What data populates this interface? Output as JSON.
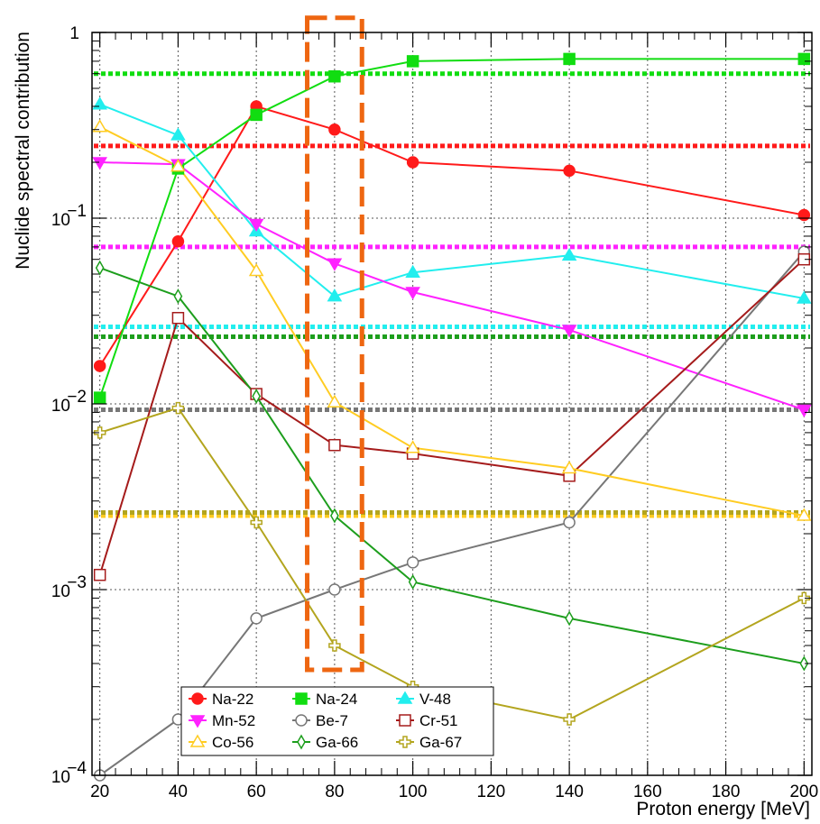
{
  "chart_data": {
    "type": "line",
    "title": "",
    "xlabel": "Proton energy [MeV]",
    "ylabel": "Nuclide spectral contribution",
    "xlim": [
      18,
      202
    ],
    "ylim": [
      0.0001,
      1
    ],
    "yscale": "log",
    "grid": true,
    "x_ticks": [
      20,
      40,
      60,
      80,
      100,
      120,
      140,
      160,
      180,
      200
    ],
    "x_tick_labels": [
      "20",
      "40",
      "60",
      "80",
      "100",
      "120",
      "140",
      "160",
      "180",
      "200"
    ],
    "y_ticks": [
      0.0001,
      0.001,
      0.01,
      0.1,
      1
    ],
    "y_tick_labels": [
      {
        "base": "10",
        "exp": "−4"
      },
      {
        "base": "10",
        "exp": "−3"
      },
      {
        "base": "10",
        "exp": "−2"
      },
      {
        "base": "10",
        "exp": "−1"
      },
      {
        "base": "1",
        "exp": ""
      }
    ],
    "legend_position": "bottom-left",
    "x": [
      20,
      40,
      60,
      80,
      100,
      140,
      200
    ],
    "series": [
      {
        "name": "Na-22",
        "color": "#ff1a1a",
        "marker": "circle-filled",
        "values": [
          0.016,
          0.075,
          0.4,
          0.3,
          0.2,
          0.18,
          0.104
        ],
        "average": 0.245
      },
      {
        "name": "Na-24",
        "color": "#11dd11",
        "marker": "square-filled",
        "values": [
          0.0108,
          0.185,
          0.36,
          0.58,
          0.7,
          0.72,
          0.72
        ],
        "average": 0.6
      },
      {
        "name": "V-48",
        "color": "#22eeee",
        "marker": "triangle-up-filled",
        "values": [
          0.41,
          0.28,
          0.085,
          0.038,
          0.051,
          0.063,
          0.037
        ],
        "average": 0.026
      },
      {
        "name": "Mn-52",
        "color": "#ff22ff",
        "marker": "triangle-down-filled",
        "values": [
          0.2,
          0.195,
          0.093,
          0.057,
          0.04,
          0.025,
          0.0093
        ],
        "average": 0.07
      },
      {
        "name": "Be-7",
        "color": "#777777",
        "marker": "circle-open",
        "values": [
          0.0001,
          0.0002,
          0.0007,
          0.001,
          0.0014,
          0.0023,
          0.066
        ],
        "average": 0.0093
      },
      {
        "name": "Cr-51",
        "color": "#a51b1b",
        "marker": "square-open",
        "values": [
          0.0012,
          0.029,
          0.0113,
          0.006,
          0.0054,
          0.0041,
          0.06
        ],
        "average": 0.0025
      },
      {
        "name": "Co-56",
        "color": "#ffcc22",
        "marker": "triangle-up-open",
        "values": [
          0.31,
          0.19,
          0.052,
          0.0102,
          0.0058,
          0.0045,
          0.0025
        ],
        "average": 0.0025
      },
      {
        "name": "Ga-66",
        "color": "#1d9e1d",
        "marker": "diamond-open",
        "values": [
          0.054,
          0.038,
          0.011,
          0.0025,
          0.0011,
          0.0007,
          0.0004
        ],
        "average": 0.023
      },
      {
        "name": "Ga-67",
        "color": "#b3a51e",
        "marker": "cross-open",
        "values": [
          0.007,
          0.0095,
          0.0023,
          0.0005,
          0.0003,
          0.0002,
          0.0009
        ],
        "average": 0.0026
      }
    ],
    "highlight_region": {
      "x": [
        73,
        87
      ],
      "y": [
        0.00037,
        1.2
      ],
      "color": "#ee6611",
      "style": "dashed-box"
    }
  }
}
